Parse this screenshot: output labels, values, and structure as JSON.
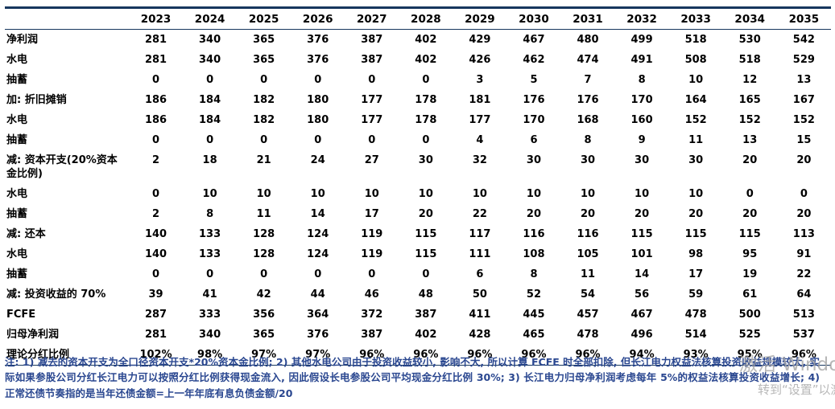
{
  "chart_data": {
    "type": "table",
    "title": "",
    "columns": [
      "2023",
      "2024",
      "2025",
      "2026",
      "2027",
      "2028",
      "2029",
      "2030",
      "2031",
      "2032",
      "2033",
      "2034",
      "2035"
    ],
    "rows": [
      {
        "label": "净利润",
        "values": [
          "281",
          "340",
          "365",
          "376",
          "387",
          "402",
          "429",
          "467",
          "480",
          "499",
          "518",
          "530",
          "542"
        ]
      },
      {
        "label": "水电",
        "values": [
          "281",
          "340",
          "365",
          "376",
          "387",
          "402",
          "426",
          "462",
          "474",
          "491",
          "508",
          "518",
          "529"
        ]
      },
      {
        "label": "抽蓄",
        "values": [
          "0",
          "0",
          "0",
          "0",
          "0",
          "0",
          "3",
          "5",
          "7",
          "8",
          "10",
          "12",
          "13"
        ]
      },
      {
        "label": "加: 折旧摊销",
        "values": [
          "186",
          "184",
          "182",
          "180",
          "177",
          "178",
          "181",
          "176",
          "176",
          "170",
          "164",
          "165",
          "167"
        ]
      },
      {
        "label": "水电",
        "values": [
          "186",
          "184",
          "182",
          "180",
          "177",
          "178",
          "177",
          "170",
          "168",
          "160",
          "152",
          "152",
          "152"
        ]
      },
      {
        "label": "抽蓄",
        "values": [
          "0",
          "0",
          "0",
          "0",
          "0",
          "0",
          "4",
          "6",
          "8",
          "9",
          "11",
          "13",
          "15"
        ]
      },
      {
        "label": "减: 资本开支(20%资本金比例)",
        "values": [
          "2",
          "18",
          "21",
          "24",
          "27",
          "30",
          "32",
          "30",
          "30",
          "30",
          "30",
          "20",
          "20"
        ]
      },
      {
        "label": "水电",
        "values": [
          "0",
          "10",
          "10",
          "10",
          "10",
          "10",
          "10",
          "10",
          "10",
          "10",
          "10",
          "0",
          "0"
        ]
      },
      {
        "label": "抽蓄",
        "values": [
          "2",
          "8",
          "11",
          "14",
          "17",
          "20",
          "22",
          "20",
          "20",
          "20",
          "20",
          "20",
          "20"
        ]
      },
      {
        "label": "减: 还本",
        "values": [
          "140",
          "133",
          "128",
          "124",
          "119",
          "115",
          "117",
          "116",
          "116",
          "115",
          "115",
          "115",
          "113"
        ]
      },
      {
        "label": "水电",
        "values": [
          "140",
          "133",
          "128",
          "124",
          "119",
          "115",
          "111",
          "108",
          "105",
          "101",
          "98",
          "95",
          "91"
        ]
      },
      {
        "label": "抽蓄",
        "values": [
          "0",
          "0",
          "0",
          "0",
          "0",
          "0",
          "6",
          "8",
          "11",
          "14",
          "17",
          "19",
          "22"
        ]
      },
      {
        "label": "减: 投资收益的 70%",
        "values": [
          "39",
          "41",
          "42",
          "44",
          "46",
          "48",
          "50",
          "52",
          "54",
          "56",
          "59",
          "61",
          "64"
        ]
      },
      {
        "label": "FCFE",
        "values": [
          "287",
          "333",
          "356",
          "364",
          "372",
          "387",
          "411",
          "445",
          "457",
          "467",
          "478",
          "500",
          "513"
        ]
      },
      {
        "label": "归母净利润",
        "values": [
          "281",
          "340",
          "365",
          "376",
          "387",
          "402",
          "428",
          "465",
          "478",
          "496",
          "514",
          "525",
          "537"
        ]
      },
      {
        "label": "理论分红比例",
        "values": [
          "102%",
          "98%",
          "97%",
          "97%",
          "96%",
          "96%",
          "96%",
          "96%",
          "96%",
          "94%",
          "93%",
          "95%",
          "96%"
        ]
      }
    ]
  },
  "footnote": "注: 1) 减去的资本开支为全口径资本开支*20%资本金比例; 2) 其他水电公司由于投资收益较小, 影响不大, 所以计算 FCFE 时全部扣除, 但长江电力权益法核算投资收益规模较大, 实际如果参股公司分红长江电力可以按照分红比例获得现金流入, 因此假设长电参股公司平均现金分红比例 30%; 3) 长江电力归母净利润考虑每年 5%的权益法核算投资收益增长; 4) 正常还债节奏指的是当年还债金额=上一年年底有息负债金额/20",
  "watermark": {
    "activate": "激活 Windows",
    "settings": "转到“设置”以激活 Windows"
  },
  "colors": {
    "table_border": "#17375E",
    "footnote_text": "#2A4790",
    "watermark_text": "#A6A6A6"
  }
}
